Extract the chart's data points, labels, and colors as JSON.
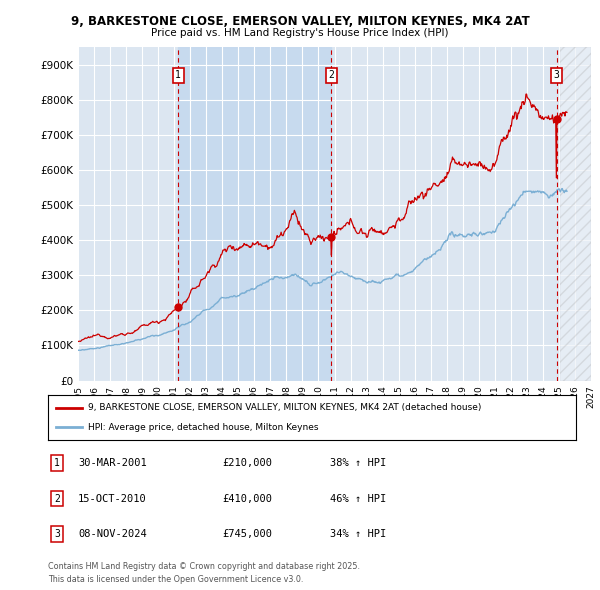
{
  "title_line1": "9, BARKESTONE CLOSE, EMERSON VALLEY, MILTON KEYNES, MK4 2AT",
  "title_line2": "Price paid vs. HM Land Registry's House Price Index (HPI)",
  "ylim": [
    0,
    950000
  ],
  "xlim_start": 1995.0,
  "xlim_end": 2027.0,
  "plot_bg_color": "#dce6f1",
  "grid_color": "#ffffff",
  "red_color": "#cc0000",
  "blue_color": "#7bafd4",
  "shade_color": "#c5d9ee",
  "sale_dates": [
    2001.25,
    2010.79,
    2024.86
  ],
  "sale_labels": [
    "1",
    "2",
    "3"
  ],
  "sale_prices": [
    210000,
    410000,
    745000
  ],
  "sale_date_strs": [
    "30-MAR-2001",
    "15-OCT-2010",
    "08-NOV-2024"
  ],
  "sale_hpi_pct": [
    "38%",
    "46%",
    "34%"
  ],
  "legend_line1": "9, BARKESTONE CLOSE, EMERSON VALLEY, MILTON KEYNES, MK4 2AT (detached house)",
  "legend_line2": "HPI: Average price, detached house, Milton Keynes",
  "footer_line1": "Contains HM Land Registry data © Crown copyright and database right 2025.",
  "footer_line2": "This data is licensed under the Open Government Licence v3.0.",
  "yticks": [
    0,
    100000,
    200000,
    300000,
    400000,
    500000,
    600000,
    700000,
    800000,
    900000
  ],
  "ytick_labels": [
    "£0",
    "£100K",
    "£200K",
    "£300K",
    "£400K",
    "£500K",
    "£600K",
    "£700K",
    "£800K",
    "£900K"
  ]
}
